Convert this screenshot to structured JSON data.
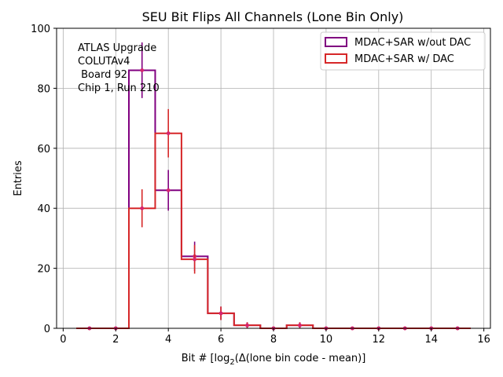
{
  "chart_data": {
    "type": "histogram",
    "title": "SEU Bit Flips All Channels (Lone Bin Only)",
    "xlabel": "Bit # [log",
    "xlabel_sub": "2",
    "xlabel_rest": "(Δ(lone bin code - mean)]",
    "ylabel": "Entries",
    "xlim": [
      -0.25,
      16.25
    ],
    "ylim": [
      0,
      100
    ],
    "xticks": [
      0,
      2,
      4,
      6,
      8,
      10,
      12,
      14,
      16
    ],
    "yticks": [
      0,
      20,
      40,
      60,
      80,
      100
    ],
    "grid": true,
    "legend_position": "top-right",
    "annotation": [
      "ATLAS Upgrade",
      "COLUTAv4",
      " Board 92",
      "Chip 1, Run 210"
    ],
    "bins": [
      1,
      2,
      3,
      4,
      5,
      6,
      7,
      8,
      9,
      10,
      11,
      12,
      13,
      14,
      15
    ],
    "series": [
      {
        "name": "MDAC+SAR w/out DAC",
        "color": "#800080",
        "values": [
          0,
          0,
          86,
          46,
          24,
          5,
          1,
          0,
          1,
          0,
          0,
          0,
          0,
          0,
          0
        ]
      },
      {
        "name": "MDAC+SAR w/ DAC",
        "color": "#d62728",
        "values": [
          0,
          0,
          40,
          65,
          23,
          5,
          1,
          0,
          1,
          0,
          0,
          0,
          0,
          0,
          0
        ]
      }
    ],
    "error_point_color": "#d6246e"
  }
}
